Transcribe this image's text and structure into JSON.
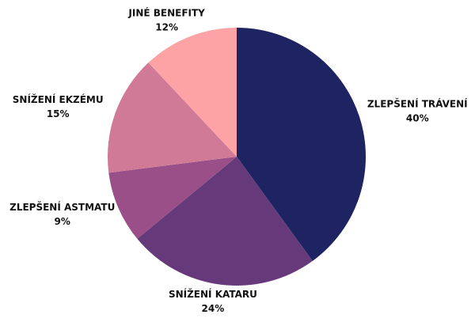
{
  "chart_data": {
    "type": "pie",
    "categories": [
      "ZLEPŠENÍ TRÁVENÍ",
      "SNÍŽENÍ KATARU",
      "ZLEPŠENÍ ASTMATU",
      "SNÍŽENÍ EKZÉMU",
      "JINÉ BENEFITY"
    ],
    "values": [
      40,
      24,
      9,
      15,
      12
    ],
    "value_labels": [
      "40%",
      "24%",
      "9%",
      "15%",
      "12%"
    ],
    "colors": [
      "#1e2361",
      "#663a7a",
      "#9a4f88",
      "#d07a98",
      "#fda3a6"
    ]
  }
}
